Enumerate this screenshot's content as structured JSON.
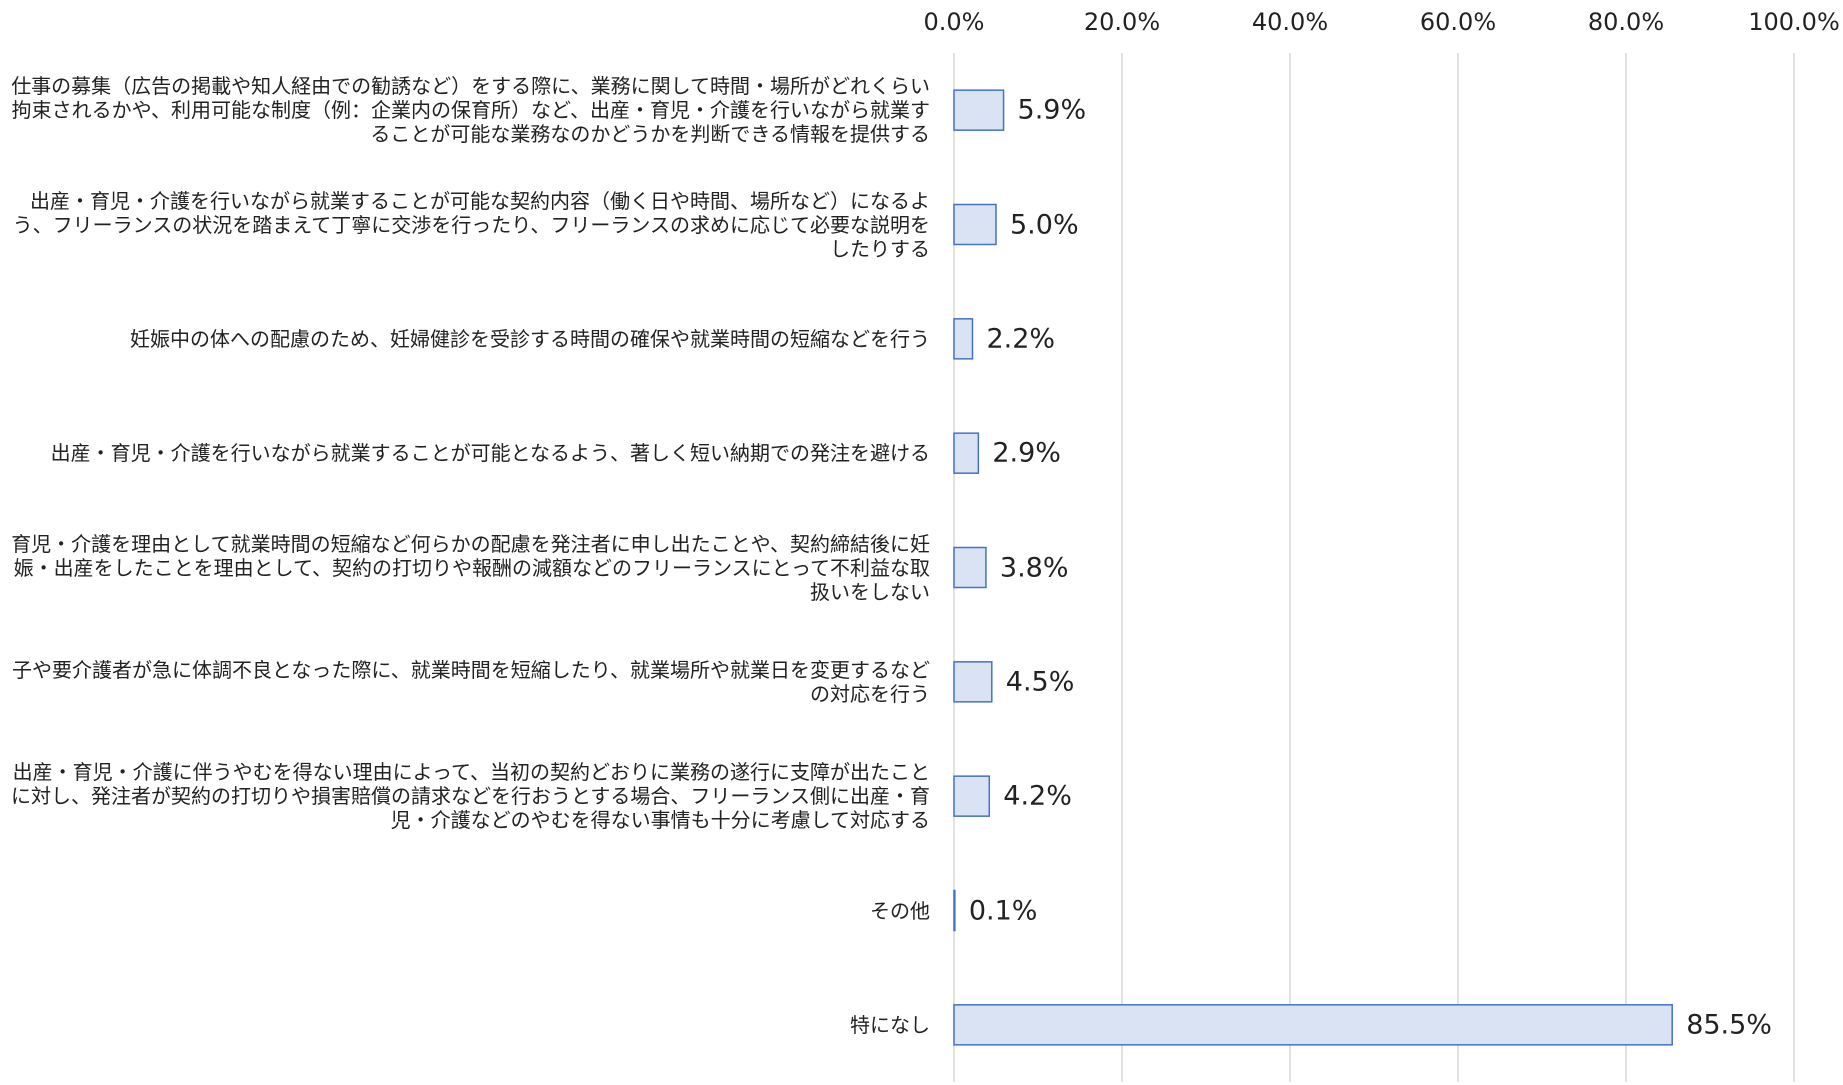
{
  "chart_data": {
    "type": "bar",
    "orientation": "horizontal",
    "categories": [
      "仕事の募集（広告の掲載や知人経由での勧誘など）をする際に、業務に関して時間・場所がどれくらい拘束されるかや、利用可能な制度（例：企業内の保育所）など、出産・育児・介護を行いながら就業することが可能な業務なのかどうかを判断できる情報を提供する",
      "出産・育児・介護を行いながら就業することが可能な契約内容（働く日や時間、場所など）になるよう、フリーランスの状況を踏まえて丁寧に交渉を行ったり、フリーランスの求めに応じて必要な説明をしたりする",
      "妊娠中の体への配慮のため、妊婦健診を受診する時間の確保や就業時間の短縮などを行う",
      "出産・育児・介護を行いながら就業することが可能となるよう、著しく短い納期での発注を避ける",
      "育児・介護を理由として就業時間の短縮など何らかの配慮を発注者に申し出たことや、契約締結後に妊娠・出産をしたことを理由として、契約の打切りや報酬の減額などのフリーランスにとって不利益な取扱いをしない",
      "子や要介護者が急に体調不良となった際に、就業時間を短縮したり、就業場所や就業日を変更するなどの対応を行う",
      "出産・育児・介護に伴うやむを得ない理由によって、当初の契約どおりに業務の遂行に支障が出たことに対し、発注者が契約の打切りや損害賠償の請求などを行おうとする場合、フリーランス側に出産・育児・介護などのやむを得ない事情も十分に考慮して対応する",
      "その他",
      "特になし"
    ],
    "values": [
      5.9,
      5.0,
      2.2,
      2.9,
      3.8,
      4.5,
      4.2,
      0.1,
      85.5
    ],
    "value_labels": [
      "5.9%",
      "5.0%",
      "2.2%",
      "2.9%",
      "3.8%",
      "4.5%",
      "4.2%",
      "0.1%",
      "85.5%"
    ],
    "color": "#dae3f3",
    "edge_color": "#4472c4",
    "xlim": [
      0,
      100
    ],
    "xticks": [
      {
        "value": 0,
        "label": "0.0%"
      },
      {
        "value": 20,
        "label": "20.0%"
      },
      {
        "value": 40,
        "label": "40.0%"
      },
      {
        "value": 60,
        "label": "60.0%"
      },
      {
        "value": 80,
        "label": "80.0%"
      },
      {
        "value": 100,
        "label": "100.0%"
      }
    ],
    "grid": true
  }
}
